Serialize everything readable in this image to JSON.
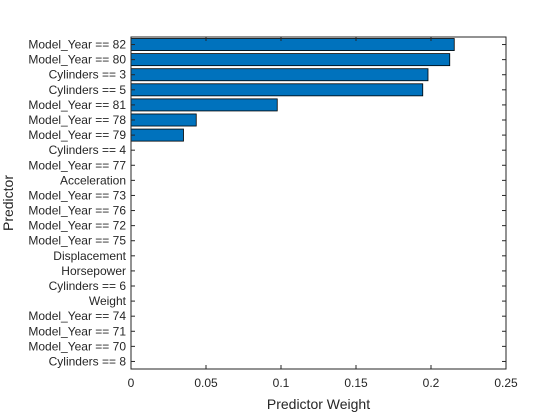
{
  "chart_data": {
    "type": "bar",
    "orientation": "horizontal",
    "title": "",
    "xlabel": "Predictor Weight",
    "ylabel": "Predictor",
    "xlim": [
      0,
      0.25
    ],
    "xticks": [
      0,
      0.05,
      0.1,
      0.15,
      0.2,
      0.25
    ],
    "xtick_labels": [
      "0",
      "0.05",
      "0.1",
      "0.15",
      "0.2",
      "0.25"
    ],
    "grid": false,
    "bar_color": "#0072BD",
    "bar_edge_color": "#000000",
    "categories": [
      "Model_Year == 82",
      "Model_Year == 80",
      "Cylinders == 3",
      "Cylinders == 5",
      "Model_Year == 81",
      "Model_Year == 78",
      "Model_Year == 79",
      "Cylinders == 4",
      "Model_Year == 77",
      "Acceleration",
      "Model_Year == 73",
      "Model_Year == 76",
      "Model_Year == 72",
      "Model_Year == 75",
      "Displacement",
      "Horsepower",
      "Cylinders == 6",
      "Weight",
      "Model_Year == 74",
      "Model_Year == 71",
      "Model_Year == 70",
      "Cylinders == 8"
    ],
    "values": [
      0.2155,
      0.2125,
      0.198,
      0.1945,
      0.0975,
      0.0435,
      0.035,
      0,
      0,
      0,
      0,
      0,
      0,
      0,
      0,
      0,
      0,
      0,
      0,
      0,
      0,
      0
    ]
  }
}
